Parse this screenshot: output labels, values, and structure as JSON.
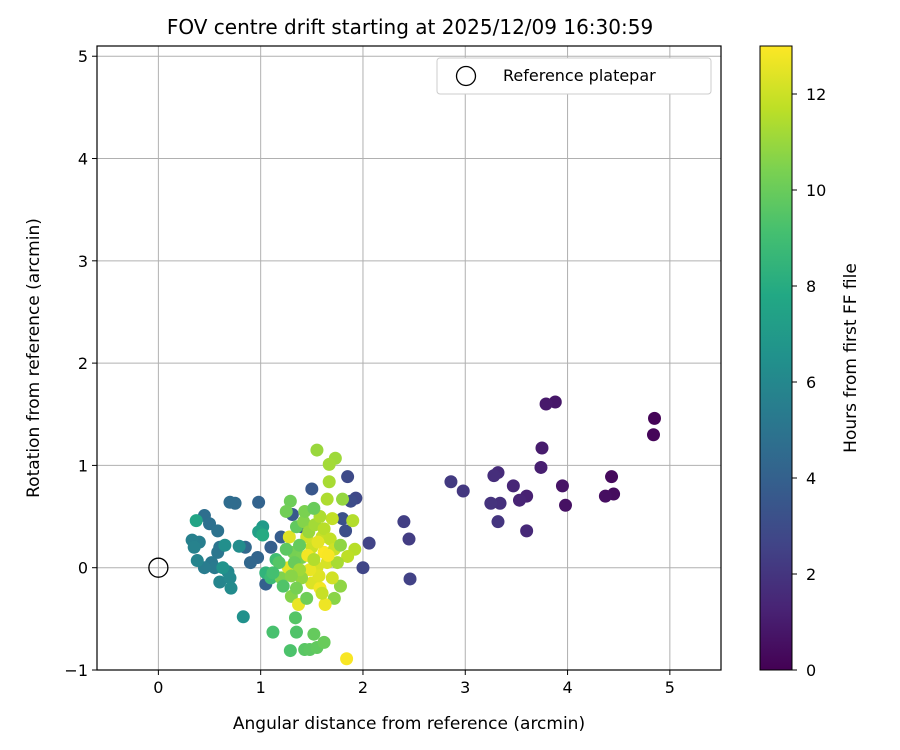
{
  "chart_data": {
    "type": "scatter",
    "title": "FOV centre drift starting at 2025/12/09 16:30:59",
    "xlabel": "Angular distance from reference (arcmin)",
    "ylabel": "Rotation from reference (arcmin)",
    "xlim": [
      -0.6,
      5.5
    ],
    "ylim": [
      -1.0,
      5.1
    ],
    "xticks": [
      0,
      1,
      2,
      3,
      4,
      5
    ],
    "yticks": [
      -1,
      0,
      1,
      2,
      3,
      4,
      5
    ],
    "grid": true,
    "legend": {
      "position": "top-right",
      "entries": [
        "Reference platepar"
      ]
    },
    "reference_point": {
      "label": "Reference platepar",
      "x": 0,
      "y": 0
    },
    "colorbar": {
      "label": "Hours from first FF file",
      "colormap": "viridis",
      "range": [
        0,
        13
      ],
      "ticks": [
        0,
        2,
        4,
        6,
        8,
        10,
        12
      ]
    },
    "points": [
      {
        "x": 4.85,
        "y": 1.46,
        "c": 0.1
      },
      {
        "x": 4.84,
        "y": 1.3,
        "c": 0.2
      },
      {
        "x": 4.43,
        "y": 0.89,
        "c": 0.3
      },
      {
        "x": 4.45,
        "y": 0.72,
        "c": 0.4
      },
      {
        "x": 4.37,
        "y": 0.7,
        "c": 0.5
      },
      {
        "x": 3.98,
        "y": 0.61,
        "c": 0.6
      },
      {
        "x": 3.95,
        "y": 0.8,
        "c": 0.7
      },
      {
        "x": 3.88,
        "y": 1.62,
        "c": 0.8
      },
      {
        "x": 3.79,
        "y": 1.6,
        "c": 0.9
      },
      {
        "x": 3.75,
        "y": 1.17,
        "c": 1.0
      },
      {
        "x": 3.74,
        "y": 0.98,
        "c": 1.1
      },
      {
        "x": 3.6,
        "y": 0.7,
        "c": 1.2
      },
      {
        "x": 3.53,
        "y": 0.66,
        "c": 1.3
      },
      {
        "x": 3.47,
        "y": 0.8,
        "c": 1.4
      },
      {
        "x": 3.6,
        "y": 0.36,
        "c": 1.5
      },
      {
        "x": 3.32,
        "y": 0.93,
        "c": 1.6
      },
      {
        "x": 3.28,
        "y": 0.9,
        "c": 1.7
      },
      {
        "x": 3.34,
        "y": 0.63,
        "c": 1.8
      },
      {
        "x": 3.25,
        "y": 0.63,
        "c": 1.9
      },
      {
        "x": 3.32,
        "y": 0.45,
        "c": 2.0
      },
      {
        "x": 2.98,
        "y": 0.75,
        "c": 2.1
      },
      {
        "x": 2.86,
        "y": 0.84,
        "c": 2.2
      },
      {
        "x": 2.45,
        "y": 0.28,
        "c": 2.3
      },
      {
        "x": 2.4,
        "y": 0.45,
        "c": 2.4
      },
      {
        "x": 2.46,
        "y": -0.11,
        "c": 2.5
      },
      {
        "x": 2.06,
        "y": 0.24,
        "c": 2.6
      },
      {
        "x": 2.0,
        "y": 0.0,
        "c": 2.7
      },
      {
        "x": 1.93,
        "y": 0.68,
        "c": 2.8
      },
      {
        "x": 1.85,
        "y": 0.89,
        "c": 2.9
      },
      {
        "x": 1.88,
        "y": 0.65,
        "c": 3.0
      },
      {
        "x": 1.83,
        "y": 0.36,
        "c": 3.1
      },
      {
        "x": 1.8,
        "y": 0.48,
        "c": 3.2
      },
      {
        "x": 1.5,
        "y": 0.77,
        "c": 3.5
      },
      {
        "x": 1.31,
        "y": 0.52,
        "c": 3.6
      },
      {
        "x": 1.4,
        "y": 0.4,
        "c": 3.7
      },
      {
        "x": 1.2,
        "y": 0.3,
        "c": 3.8
      },
      {
        "x": 1.1,
        "y": 0.2,
        "c": 3.9
      },
      {
        "x": 1.05,
        "y": -0.16,
        "c": 4.0
      },
      {
        "x": 0.98,
        "y": 0.64,
        "c": 4.1
      },
      {
        "x": 0.97,
        "y": 0.1,
        "c": 4.2
      },
      {
        "x": 0.9,
        "y": 0.05,
        "c": 4.3
      },
      {
        "x": 0.85,
        "y": 0.2,
        "c": 4.4
      },
      {
        "x": 0.75,
        "y": 0.63,
        "c": 4.5
      },
      {
        "x": 0.7,
        "y": 0.64,
        "c": 4.6
      },
      {
        "x": 0.45,
        "y": 0.51,
        "c": 4.7
      },
      {
        "x": 0.5,
        "y": 0.43,
        "c": 4.8
      },
      {
        "x": 0.58,
        "y": 0.36,
        "c": 4.9
      },
      {
        "x": 0.6,
        "y": 0.2,
        "c": 5.0
      },
      {
        "x": 0.58,
        "y": 0.15,
        "c": 5.1
      },
      {
        "x": 0.52,
        "y": 0.05,
        "c": 5.2
      },
      {
        "x": 0.55,
        "y": 0.0,
        "c": 5.3
      },
      {
        "x": 0.45,
        "y": 0.0,
        "c": 5.4
      },
      {
        "x": 0.4,
        "y": 0.25,
        "c": 5.5
      },
      {
        "x": 0.33,
        "y": 0.27,
        "c": 5.6
      },
      {
        "x": 0.35,
        "y": 0.2,
        "c": 5.7
      },
      {
        "x": 0.38,
        "y": 0.07,
        "c": 5.8
      },
      {
        "x": 0.6,
        "y": -0.14,
        "c": 5.9
      },
      {
        "x": 0.68,
        "y": -0.04,
        "c": 6.0
      },
      {
        "x": 0.7,
        "y": -0.1,
        "c": 6.1
      },
      {
        "x": 0.71,
        "y": -0.2,
        "c": 6.2
      },
      {
        "x": 0.79,
        "y": 0.21,
        "c": 6.3
      },
      {
        "x": 0.65,
        "y": 0.22,
        "c": 6.4
      },
      {
        "x": 0.83,
        "y": -0.48,
        "c": 6.5
      },
      {
        "x": 0.63,
        "y": 0.0,
        "c": 6.6
      },
      {
        "x": 1.02,
        "y": 0.4,
        "c": 7.0
      },
      {
        "x": 0.98,
        "y": 0.35,
        "c": 7.3
      },
      {
        "x": 0.37,
        "y": 0.46,
        "c": 7.6
      },
      {
        "x": 1.02,
        "y": 0.32,
        "c": 7.9
      },
      {
        "x": 1.05,
        "y": -0.05,
        "c": 8.4
      },
      {
        "x": 1.1,
        "y": -0.1,
        "c": 8.8
      },
      {
        "x": 1.15,
        "y": 0.08,
        "c": 9.0
      },
      {
        "x": 1.12,
        "y": -0.63,
        "c": 9.2
      },
      {
        "x": 1.29,
        "y": -0.81,
        "c": 9.3
      },
      {
        "x": 1.35,
        "y": -0.63,
        "c": 9.4
      },
      {
        "x": 1.34,
        "y": -0.49,
        "c": 9.5
      },
      {
        "x": 1.43,
        "y": -0.8,
        "c": 9.6
      },
      {
        "x": 1.48,
        "y": -0.8,
        "c": 9.7
      },
      {
        "x": 1.55,
        "y": -0.78,
        "c": 9.8
      },
      {
        "x": 1.52,
        "y": -0.65,
        "c": 9.9
      },
      {
        "x": 1.62,
        "y": -0.73,
        "c": 10.0
      },
      {
        "x": 1.29,
        "y": 0.65,
        "c": 10.1
      },
      {
        "x": 1.25,
        "y": 0.55,
        "c": 10.2
      },
      {
        "x": 1.32,
        "y": 0.15,
        "c": 10.3
      },
      {
        "x": 1.4,
        "y": 0.1,
        "c": 10.4
      },
      {
        "x": 1.2,
        "y": -0.1,
        "c": 10.5
      },
      {
        "x": 1.3,
        "y": -0.28,
        "c": 10.6
      },
      {
        "x": 1.72,
        "y": -0.3,
        "c": 10.7
      },
      {
        "x": 1.78,
        "y": -0.18,
        "c": 10.8
      },
      {
        "x": 1.8,
        "y": 0.67,
        "c": 10.9
      },
      {
        "x": 1.55,
        "y": 1.15,
        "c": 11.0
      },
      {
        "x": 1.73,
        "y": 1.07,
        "c": 11.1
      },
      {
        "x": 1.67,
        "y": 1.01,
        "c": 11.2
      },
      {
        "x": 1.67,
        "y": 0.84,
        "c": 11.3
      },
      {
        "x": 1.65,
        "y": 0.67,
        "c": 11.4
      },
      {
        "x": 1.9,
        "y": 0.46,
        "c": 11.5
      },
      {
        "x": 1.92,
        "y": 0.18,
        "c": 11.6
      },
      {
        "x": 1.85,
        "y": 0.11,
        "c": 11.7
      },
      {
        "x": 1.7,
        "y": 0.48,
        "c": 11.8
      },
      {
        "x": 1.6,
        "y": 0.3,
        "c": 11.9
      },
      {
        "x": 1.5,
        "y": 0.2,
        "c": 12.0
      },
      {
        "x": 1.45,
        "y": 0.3,
        "c": 12.1
      },
      {
        "x": 1.55,
        "y": 0.0,
        "c": 12.2
      },
      {
        "x": 1.5,
        "y": -0.15,
        "c": 12.3
      },
      {
        "x": 1.28,
        "y": 0.3,
        "c": 12.4
      },
      {
        "x": 1.27,
        "y": 0.0,
        "c": 12.5
      },
      {
        "x": 1.37,
        "y": -0.36,
        "c": 12.6
      },
      {
        "x": 1.63,
        "y": -0.36,
        "c": 12.7
      },
      {
        "x": 1.58,
        "y": -0.2,
        "c": 12.8
      },
      {
        "x": 1.84,
        "y": -0.89,
        "c": 12.9
      },
      {
        "x": 1.62,
        "y": 0.15,
        "c": 12.95
      },
      {
        "x": 1.35,
        "y": 0.4,
        "c": 9.8
      },
      {
        "x": 1.42,
        "y": 0.45,
        "c": 10.6
      },
      {
        "x": 1.47,
        "y": 0.35,
        "c": 11.0
      },
      {
        "x": 1.53,
        "y": 0.42,
        "c": 11.2
      },
      {
        "x": 1.58,
        "y": 0.5,
        "c": 11.4
      },
      {
        "x": 1.62,
        "y": 0.38,
        "c": 11.6
      },
      {
        "x": 1.68,
        "y": 0.28,
        "c": 11.8
      },
      {
        "x": 1.72,
        "y": 0.18,
        "c": 12.0
      },
      {
        "x": 1.65,
        "y": 0.05,
        "c": 12.2
      },
      {
        "x": 1.57,
        "y": -0.08,
        "c": 12.4
      },
      {
        "x": 1.48,
        "y": -0.02,
        "c": 12.6
      },
      {
        "x": 1.4,
        "y": -0.1,
        "c": 10.9
      },
      {
        "x": 1.35,
        "y": -0.2,
        "c": 10.3
      },
      {
        "x": 1.45,
        "y": -0.3,
        "c": 10.1
      },
      {
        "x": 1.6,
        "y": -0.25,
        "c": 11.9
      },
      {
        "x": 1.7,
        "y": -0.1,
        "c": 12.1
      },
      {
        "x": 1.75,
        "y": 0.05,
        "c": 11.3
      },
      {
        "x": 1.78,
        "y": 0.22,
        "c": 10.8
      },
      {
        "x": 1.38,
        "y": 0.22,
        "c": 9.9
      },
      {
        "x": 1.33,
        "y": 0.05,
        "c": 10.0
      },
      {
        "x": 1.25,
        "y": 0.18,
        "c": 9.7
      },
      {
        "x": 1.18,
        "y": 0.05,
        "c": 9.5
      },
      {
        "x": 1.12,
        "y": -0.05,
        "c": 9.1
      },
      {
        "x": 1.22,
        "y": -0.18,
        "c": 9.4
      },
      {
        "x": 1.43,
        "y": 0.55,
        "c": 10.4
      },
      {
        "x": 1.52,
        "y": 0.58,
        "c": 10.0
      },
      {
        "x": 1.46,
        "y": 0.12,
        "c": 12.8
      },
      {
        "x": 1.56,
        "y": 0.25,
        "c": 12.5
      },
      {
        "x": 1.66,
        "y": 0.12,
        "c": 12.9
      },
      {
        "x": 1.52,
        "y": 0.08,
        "c": 11.5
      },
      {
        "x": 1.38,
        "y": -0.02,
        "c": 11.1
      },
      {
        "x": 1.3,
        "y": -0.08,
        "c": 10.7
      }
    ]
  }
}
